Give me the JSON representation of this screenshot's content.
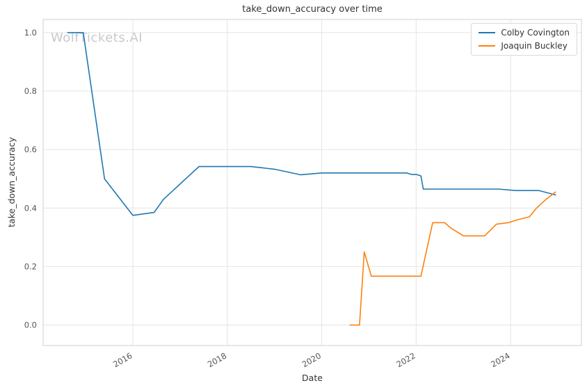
{
  "watermark": "WolfTickets.AI",
  "chart_data": {
    "type": "line",
    "title": "take_down_accuracy over time",
    "xlabel": "Date",
    "ylabel": "take_down_accuracy",
    "grid": true,
    "legend_position": "upper right",
    "xlim": [
      2014.1,
      2025.5
    ],
    "ylim": [
      -0.07,
      1.045
    ],
    "xticks": {
      "values": [
        2016,
        2018,
        2020,
        2022,
        2024
      ],
      "labels": [
        "2016",
        "2018",
        "2020",
        "2022",
        "2024"
      ]
    },
    "yticks": {
      "values": [
        0.0,
        0.2,
        0.4,
        0.6,
        0.8,
        1.0
      ],
      "labels": [
        "0.0",
        "0.2",
        "0.4",
        "0.6",
        "0.8",
        "1.0"
      ]
    },
    "series": [
      {
        "name": "Colby Covington",
        "color": "#1f77b4",
        "x": [
          2014.62,
          2014.95,
          2015.4,
          2016.0,
          2016.45,
          2016.65,
          2017.4,
          2018.1,
          2018.5,
          2019.0,
          2019.55,
          2020.0,
          2020.8,
          2021.6,
          2021.8,
          2021.9,
          2022.0,
          2022.1,
          2022.15,
          2023.0,
          2023.75,
          2024.1,
          2024.6,
          2024.95
        ],
        "y": [
          1.0,
          1.0,
          0.5,
          0.375,
          0.385,
          0.43,
          0.542,
          0.542,
          0.542,
          0.533,
          0.514,
          0.52,
          0.52,
          0.52,
          0.52,
          0.515,
          0.515,
          0.51,
          0.465,
          0.465,
          0.465,
          0.46,
          0.46,
          0.445
        ]
      },
      {
        "name": "Joaquin Buckley",
        "color": "#ff7f0e",
        "x": [
          2020.6,
          2020.8,
          2020.9,
          2021.05,
          2021.6,
          2022.0,
          2022.1,
          2022.35,
          2022.6,
          2022.75,
          2023.0,
          2023.2,
          2023.45,
          2023.7,
          2023.95,
          2024.15,
          2024.4,
          2024.55,
          2024.75,
          2024.95
        ],
        "y": [
          0.0,
          0.0,
          0.25,
          0.167,
          0.167,
          0.167,
          0.167,
          0.35,
          0.35,
          0.33,
          0.305,
          0.305,
          0.305,
          0.345,
          0.35,
          0.36,
          0.37,
          0.4,
          0.43,
          0.455
        ]
      }
    ]
  }
}
